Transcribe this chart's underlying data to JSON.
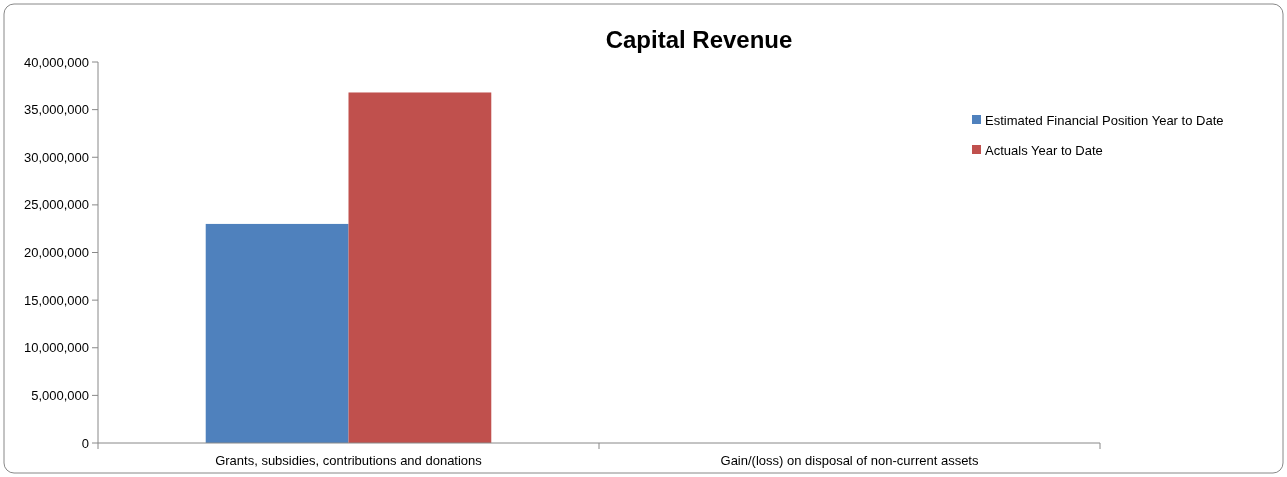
{
  "chart_data": {
    "type": "bar",
    "title": "Capital Revenue",
    "categories": [
      "Grants, subsidies, contributions and donations",
      "Gain/(loss) on disposal of non-current assets"
    ],
    "series": [
      {
        "name": "Estimated Financial Position Year to Date",
        "color": "#4f81bd",
        "values": [
          23000000,
          0
        ]
      },
      {
        "name": "Actuals Year to Date",
        "color": "#c0504d",
        "values": [
          36800000,
          0
        ]
      }
    ],
    "ylim": [
      0,
      40000000
    ],
    "yticks": [
      {
        "value": 0,
        "label": "0"
      },
      {
        "value": 5000000,
        "label": "5,000,000"
      },
      {
        "value": 10000000,
        "label": "10,000,000"
      },
      {
        "value": 15000000,
        "label": "15,000,000"
      },
      {
        "value": 20000000,
        "label": "20,000,000"
      },
      {
        "value": 25000000,
        "label": "25,000,000"
      },
      {
        "value": 30000000,
        "label": "30,000,000"
      },
      {
        "value": 35000000,
        "label": "35,000,000"
      },
      {
        "value": 40000000,
        "label": "40,000,000"
      }
    ],
    "grid": false,
    "legend": "right"
  }
}
